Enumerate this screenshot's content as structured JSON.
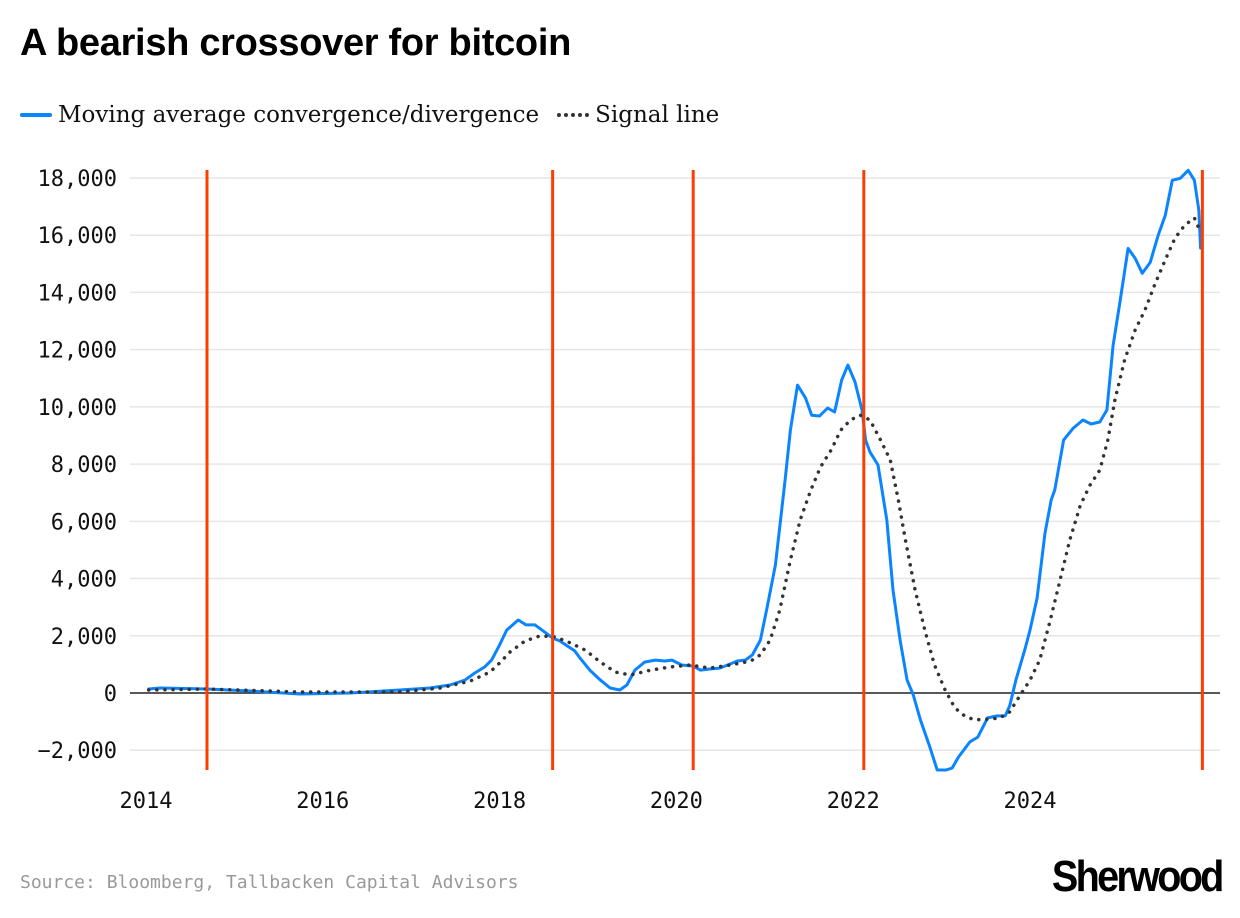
{
  "chart_data": {
    "type": "line",
    "title": "A bearish crossover for bitcoin",
    "xlabel": "",
    "ylabel": "",
    "xlim": [
      2014,
      2026
    ],
    "ylim": [
      -2700,
      18300
    ],
    "x_ticks": [
      2014,
      2016,
      2018,
      2020,
      2022,
      2024
    ],
    "x_tick_labels": [
      "2014",
      "2016",
      "2018",
      "2020",
      "2022",
      "2024"
    ],
    "y_ticks": [
      -2000,
      0,
      2000,
      4000,
      6000,
      8000,
      10000,
      12000,
      14000,
      16000,
      18000
    ],
    "y_tick_labels": [
      "−2,000",
      "0",
      "2,000",
      "4,000",
      "6,000",
      "8,000",
      "10,000",
      "12,000",
      "14,000",
      "16,000",
      "18,000"
    ],
    "grid": true,
    "legend_placement": "top-left",
    "colors": {
      "macd": "#0a84ff",
      "signal": "#333333",
      "crossover": "#ff3d00",
      "grid": "#e6e6e6",
      "zero": "#222222"
    },
    "crossover_markers": [
      2014.69,
      2018.6,
      2020.19,
      2022.12,
      2025.95
    ],
    "series": [
      {
        "name": "Moving average convergence/divergence",
        "style": "solid",
        "points": [
          [
            2014.03,
            140
          ],
          [
            2014.16,
            175
          ],
          [
            2014.69,
            140
          ],
          [
            2015.18,
            70
          ],
          [
            2015.74,
            -35
          ],
          [
            2016.31,
            0
          ],
          [
            2016.87,
            105
          ],
          [
            2017.21,
            175
          ],
          [
            2017.44,
            280
          ],
          [
            2017.61,
            455
          ],
          [
            2017.72,
            700
          ],
          [
            2017.83,
            910
          ],
          [
            2017.91,
            1150
          ],
          [
            2018.0,
            1680
          ],
          [
            2018.08,
            2200
          ],
          [
            2018.21,
            2550
          ],
          [
            2018.3,
            2380
          ],
          [
            2018.4,
            2380
          ],
          [
            2018.51,
            2130
          ],
          [
            2018.6,
            1920
          ],
          [
            2018.68,
            1820
          ],
          [
            2018.85,
            1470
          ],
          [
            2018.91,
            1220
          ],
          [
            2019.02,
            800
          ],
          [
            2019.14,
            450
          ],
          [
            2019.25,
            175
          ],
          [
            2019.36,
            105
          ],
          [
            2019.44,
            280
          ],
          [
            2019.53,
            800
          ],
          [
            2019.64,
            1080
          ],
          [
            2019.76,
            1150
          ],
          [
            2019.87,
            1120
          ],
          [
            2019.95,
            1150
          ],
          [
            2020.06,
            980
          ],
          [
            2020.19,
            940
          ],
          [
            2020.27,
            800
          ],
          [
            2020.38,
            840
          ],
          [
            2020.49,
            870
          ],
          [
            2020.58,
            980
          ],
          [
            2020.69,
            1120
          ],
          [
            2020.78,
            1150
          ],
          [
            2020.86,
            1330
          ],
          [
            2020.95,
            1850
          ],
          [
            2021.02,
            2900
          ],
          [
            2021.12,
            4470
          ],
          [
            2021.23,
            7440
          ],
          [
            2021.29,
            9190
          ],
          [
            2021.37,
            10760
          ],
          [
            2021.46,
            10310
          ],
          [
            2021.53,
            9710
          ],
          [
            2021.62,
            9680
          ],
          [
            2021.71,
            9960
          ],
          [
            2021.79,
            9820
          ],
          [
            2021.87,
            10940
          ],
          [
            2021.94,
            11460
          ],
          [
            2022.02,
            10870
          ],
          [
            2022.1,
            9890
          ],
          [
            2022.14,
            8840
          ],
          [
            2022.19,
            8420
          ],
          [
            2022.28,
            7970
          ],
          [
            2022.38,
            6050
          ],
          [
            2022.45,
            3600
          ],
          [
            2022.53,
            1850
          ],
          [
            2022.61,
            450
          ],
          [
            2022.68,
            -70
          ],
          [
            2022.76,
            -940
          ],
          [
            2022.86,
            -1820
          ],
          [
            2022.95,
            -2690
          ],
          [
            2023.05,
            -2690
          ],
          [
            2023.12,
            -2620
          ],
          [
            2023.19,
            -2240
          ],
          [
            2023.32,
            -1710
          ],
          [
            2023.41,
            -1540
          ],
          [
            2023.52,
            -870
          ],
          [
            2023.63,
            -800
          ],
          [
            2023.72,
            -800
          ],
          [
            2023.77,
            -450
          ],
          [
            2023.84,
            450
          ],
          [
            2023.94,
            1500
          ],
          [
            2024.0,
            2200
          ],
          [
            2024.08,
            3320
          ],
          [
            2024.17,
            5590
          ],
          [
            2024.24,
            6750
          ],
          [
            2024.28,
            7100
          ],
          [
            2024.38,
            8840
          ],
          [
            2024.49,
            9260
          ],
          [
            2024.6,
            9540
          ],
          [
            2024.69,
            9400
          ],
          [
            2024.79,
            9470
          ],
          [
            2024.87,
            9890
          ],
          [
            2024.94,
            12150
          ],
          [
            2025.02,
            13720
          ],
          [
            2025.11,
            15540
          ],
          [
            2025.19,
            15190
          ],
          [
            2025.27,
            14670
          ],
          [
            2025.36,
            15050
          ],
          [
            2025.45,
            16000
          ],
          [
            2025.53,
            16700
          ],
          [
            2025.61,
            17920
          ],
          [
            2025.7,
            17990
          ],
          [
            2025.79,
            18270
          ],
          [
            2025.86,
            17920
          ],
          [
            2025.91,
            16880
          ],
          [
            2025.93,
            15550
          ]
        ]
      },
      {
        "name": "Signal line",
        "style": "dotted",
        "points": [
          [
            2014.03,
            105
          ],
          [
            2014.69,
            140
          ],
          [
            2015.74,
            35
          ],
          [
            2016.87,
            35
          ],
          [
            2017.33,
            175
          ],
          [
            2017.67,
            420
          ],
          [
            2017.89,
            730
          ],
          [
            2018.0,
            1050
          ],
          [
            2018.12,
            1440
          ],
          [
            2018.29,
            1820
          ],
          [
            2018.46,
            2000
          ],
          [
            2018.63,
            1960
          ],
          [
            2018.8,
            1750
          ],
          [
            2018.97,
            1500
          ],
          [
            2019.14,
            1080
          ],
          [
            2019.31,
            730
          ],
          [
            2019.48,
            630
          ],
          [
            2019.71,
            800
          ],
          [
            2019.93,
            910
          ],
          [
            2020.15,
            980
          ],
          [
            2020.38,
            870
          ],
          [
            2020.61,
            980
          ],
          [
            2020.84,
            1120
          ],
          [
            2020.95,
            1330
          ],
          [
            2021.06,
            1850
          ],
          [
            2021.17,
            2900
          ],
          [
            2021.29,
            4650
          ],
          [
            2021.4,
            6050
          ],
          [
            2021.52,
            7090
          ],
          [
            2021.63,
            7900
          ],
          [
            2021.75,
            8490
          ],
          [
            2021.86,
            9190
          ],
          [
            2021.97,
            9540
          ],
          [
            2022.08,
            9710
          ],
          [
            2022.19,
            9540
          ],
          [
            2022.31,
            8840
          ],
          [
            2022.42,
            8140
          ],
          [
            2022.51,
            6750
          ],
          [
            2022.59,
            5350
          ],
          [
            2022.7,
            3600
          ],
          [
            2022.81,
            2200
          ],
          [
            2022.92,
            980
          ],
          [
            2023.04,
            105
          ],
          [
            2023.15,
            -520
          ],
          [
            2023.26,
            -800
          ],
          [
            2023.37,
            -940
          ],
          [
            2023.55,
            -910
          ],
          [
            2023.66,
            -870
          ],
          [
            2023.77,
            -660
          ],
          [
            2023.89,
            -70
          ],
          [
            2024.0,
            450
          ],
          [
            2024.11,
            1150
          ],
          [
            2024.23,
            2550
          ],
          [
            2024.34,
            3950
          ],
          [
            2024.45,
            5350
          ],
          [
            2024.57,
            6570
          ],
          [
            2024.68,
            7270
          ],
          [
            2024.79,
            7790
          ],
          [
            2024.88,
            8840
          ],
          [
            2024.96,
            10240
          ],
          [
            2025.07,
            11640
          ],
          [
            2025.19,
            12690
          ],
          [
            2025.3,
            13380
          ],
          [
            2025.41,
            14260
          ],
          [
            2025.53,
            15140
          ],
          [
            2025.64,
            15900
          ],
          [
            2025.75,
            16350
          ],
          [
            2025.86,
            16600
          ],
          [
            2025.93,
            16100
          ]
        ]
      }
    ]
  },
  "legend": {
    "macd_label": "Moving average convergence/divergence",
    "signal_label": "Signal line"
  },
  "footer": {
    "source": "Source: Bloomberg, Tallbacken Capital Advisors",
    "logo": "Sherwood"
  }
}
